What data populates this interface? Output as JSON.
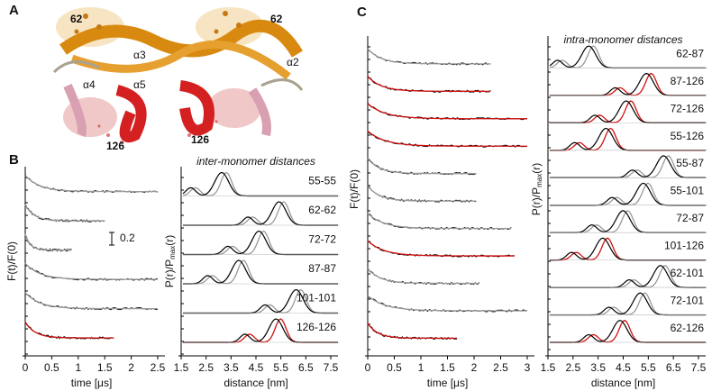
{
  "panels": {
    "a": "A",
    "b": "B",
    "c": "C"
  },
  "a": {
    "labels": [
      "62",
      "62",
      "α3",
      "α2",
      "α4",
      "α5",
      "126",
      "126"
    ]
  },
  "b": {
    "ylabel": "F(t)/F(0)",
    "scale": "0.2",
    "time_axis": {
      "label": "time [μs]",
      "ticks": [
        0,
        0.5,
        1,
        1.5,
        2,
        2.5
      ]
    },
    "dist_title": "inter-monomer distances",
    "dist_ylabel": [
      "P(r)/P",
      "max",
      "(r)"
    ],
    "dist_axis": {
      "label": "distance [nm]",
      "ticks": [
        1.5,
        2.5,
        3.5,
        4.5,
        5.5,
        6.5,
        7.5
      ]
    },
    "pairs": [
      "55-55",
      "62-62",
      "72-72",
      "87-87",
      "101-101",
      "126-126"
    ]
  },
  "c": {
    "ylabel": "F(t)/F(0)",
    "time_axis": {
      "label": "time [μs]",
      "ticks": [
        0,
        0.5,
        1,
        1.5,
        2,
        2.5,
        3
      ]
    },
    "dist_title": "intra-monomer distances",
    "dist_ylabel": [
      "P(r)/P",
      "max",
      "(r)"
    ],
    "dist_axis": {
      "label": "distance [nm]",
      "ticks": [
        1.5,
        2.5,
        3.5,
        4.5,
        5.5,
        6.5,
        7.5
      ]
    },
    "pairs": [
      "62-87",
      "87-126",
      "72-126",
      "55-126",
      "55-87",
      "55-101",
      "72-87",
      "101-126",
      "62-101",
      "72-101",
      "62-126"
    ]
  }
}
